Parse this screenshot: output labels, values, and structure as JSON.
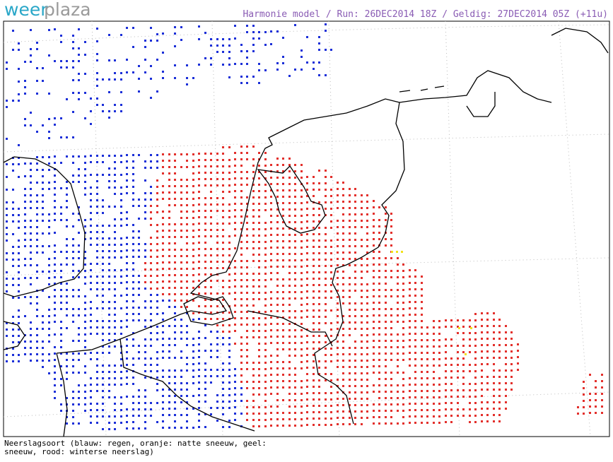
{
  "logo": {
    "part1": "weer",
    "part2": "plaza"
  },
  "header": "Harmonie model / Run: 26DEC2014 18Z / Geldig: 27DEC2014 05Z (+11u)",
  "legend": {
    "line1": "Neerslagsoort (blauw: regen, oranje: natte sneeuw, geel:",
    "line2": "sneeuw, rood: winterse neerslag)"
  }
}
